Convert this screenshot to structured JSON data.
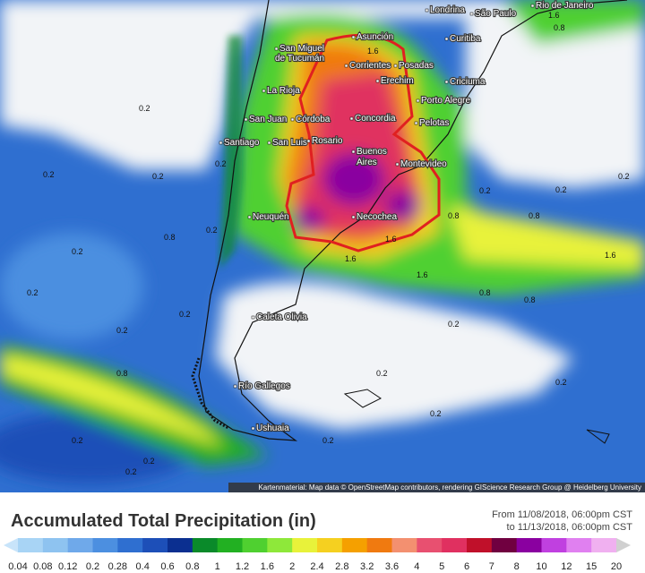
{
  "map": {
    "cities": [
      "Londrina",
      "São Paulo",
      "Rio de Janeiro",
      "Curitiba",
      "Asunción",
      "San Miguel",
      "de Tucumán",
      "Corrientes",
      "Posadas",
      "Erechim",
      "Criciuma",
      "La Rioja",
      "Porto Alegre",
      "San Juan",
      "Córdoba",
      "Concordia",
      "Pelotas",
      "Santiago",
      "San Luis",
      "Rosario",
      "Buenos",
      "Aires",
      "Montevideo",
      "Neuquén",
      "Necochea",
      "Caleta Olivia",
      "Río Gallegos",
      "Ushuaia"
    ],
    "contour_labels": [
      "1.6",
      "0.8",
      "0.2",
      "0.2",
      "0.2",
      "0.2",
      "0.2",
      "0.2",
      "0.2",
      "0.8",
      "1.6",
      "1.6",
      "0.8",
      "0.2",
      "0.2",
      "0.2",
      "0.8",
      "1.6",
      "0.8",
      "0.2",
      "0.2",
      "0.2",
      "0.2",
      "0.8",
      "0.2",
      "0.2",
      "0.2",
      "0.2",
      "0.2",
      "0.2",
      "0.8",
      "1.6",
      "1.6"
    ],
    "attribution": "Kartenmaterial: Map data © OpenStreetMap contributors, rendering GIScience Research Group @ Heidelberg University"
  },
  "legend": {
    "title": "Accumulated Total Precipitation (in)",
    "period_from": "From 11/08/2018, 06:00pm CST",
    "period_to": "to 11/13/2018, 06:00pm CST",
    "labels": [
      "0.04",
      "0.08",
      "0.12",
      "0.2",
      "0.28",
      "0.4",
      "0.6",
      "0.8",
      "1",
      "1.2",
      "1.6",
      "2",
      "2.4",
      "2.8",
      "3.2",
      "3.6",
      "4",
      "5",
      "6",
      "7",
      "8",
      "10",
      "12",
      "15",
      "20"
    ],
    "colors": [
      "#c8e4fa",
      "#a8d4f5",
      "#8ec3f0",
      "#6fa9ea",
      "#4c8fe0",
      "#2f6fd0",
      "#1d4fb8",
      "#0b2f90",
      "#0a8a2a",
      "#22b022",
      "#4fd030",
      "#8ee83a",
      "#e8f23a",
      "#f5d020",
      "#f5a000",
      "#f07a10",
      "#f39070",
      "#e85070",
      "#e03060",
      "#c0102a",
      "#700040",
      "#8a00a0",
      "#c040e0",
      "#e080f0",
      "#f0b0f0",
      "#d0d0d0"
    ]
  }
}
